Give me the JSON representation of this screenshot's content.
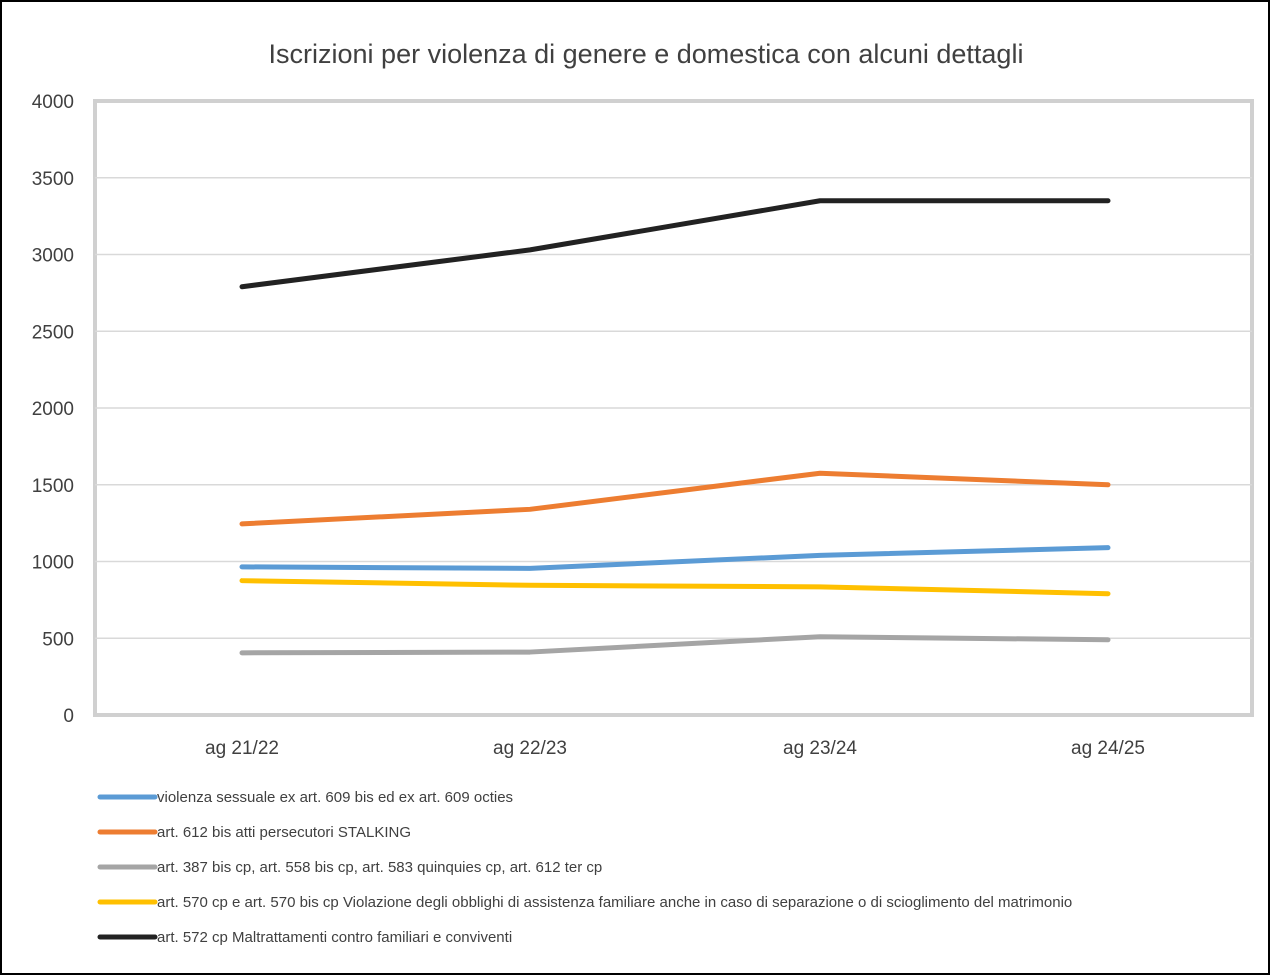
{
  "chart_data": {
    "type": "line",
    "title": "Iscrizioni per violenza di genere e domestica con alcuni dettagli",
    "xlabel": "",
    "ylabel": "",
    "categories": [
      "ag 21/22",
      "ag 22/23",
      "ag 23/24",
      "ag 24/25"
    ],
    "ylim": [
      0,
      4000
    ],
    "yticks": [
      "0",
      "500",
      "1000",
      "1500",
      "2000",
      "2500",
      "3000",
      "3500",
      "4000"
    ],
    "grid": "horizontal",
    "legend_position": "bottom",
    "series": [
      {
        "name": "violenza sessuale ex art. 609 bis  ed ex art. 609 octies",
        "color": "#5B9BD5",
        "values": [
          965,
          955,
          1040,
          1090
        ]
      },
      {
        "name": "art. 612 bis atti persecutori STALKING",
        "color": "#ED7D31",
        "values": [
          1245,
          1340,
          1575,
          1500
        ]
      },
      {
        "name": "art. 387 bis cp, art. 558 bis cp, art. 583 quinquies cp, art. 612 ter cp",
        "color": "#A5A5A5",
        "values": [
          405,
          410,
          510,
          490
        ]
      },
      {
        "name": "art. 570 cp e art. 570 bis cp Violazione degli obblighi di assistenza familiare anche in caso di separazione o di scioglimento del matrimonio",
        "color": "#FFC000",
        "values": [
          875,
          845,
          835,
          790
        ]
      },
      {
        "name": "art. 572 cp Maltrattamenti contro familiari e conviventi",
        "color": "#222222",
        "values": [
          2790,
          3030,
          3350,
          3350
        ]
      }
    ]
  }
}
